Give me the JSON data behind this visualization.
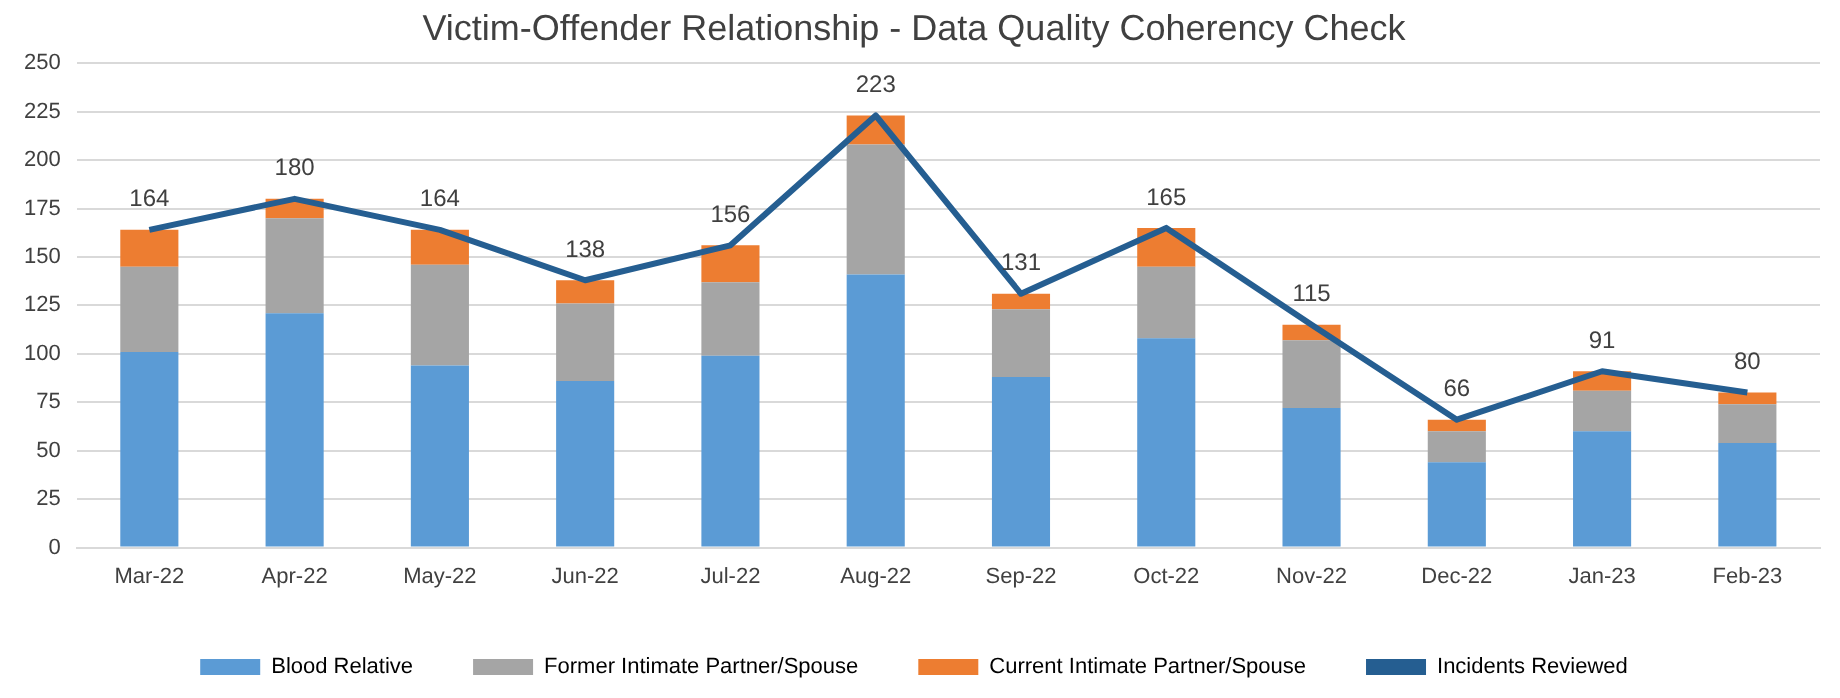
{
  "chart_data": {
    "type": "bar",
    "title": "Victim-Offender Relationship - Data Quality Coherency Check",
    "categories": [
      "Mar-22",
      "Apr-22",
      "May-22",
      "Jun-22",
      "Jul-22",
      "Aug-22",
      "Sep-22",
      "Oct-22",
      "Nov-22",
      "Dec-22",
      "Jan-23",
      "Feb-23"
    ],
    "stacked": true,
    "series": [
      {
        "name": "Blood Relative",
        "color": "#5b9bd5",
        "values": [
          101,
          121,
          94,
          86,
          99,
          141,
          88,
          108,
          72,
          44,
          60,
          54
        ]
      },
      {
        "name": "Former Intimate Partner/Spouse",
        "color": "#a5a5a5",
        "values": [
          44,
          49,
          52,
          40,
          38,
          67,
          35,
          37,
          35,
          16,
          21,
          20
        ]
      },
      {
        "name": "Current Intimate Partner/Spouse",
        "color": "#ed7d31",
        "values": [
          19,
          10,
          18,
          12,
          19,
          15,
          8,
          20,
          8,
          6,
          10,
          6
        ]
      },
      {
        "name": "Incidents Reviewed",
        "type": "line",
        "color": "#255e91",
        "values": [
          164,
          180,
          164,
          138,
          156,
          223,
          131,
          165,
          115,
          66,
          91,
          80
        ],
        "value_labels": [
          "164",
          "180",
          "164",
          "138",
          "156",
          "223",
          "131",
          "165",
          "115",
          "66",
          "91",
          "80"
        ]
      }
    ],
    "ylim": [
      0,
      250
    ],
    "yticks": [
      0,
      25,
      50,
      75,
      100,
      125,
      150,
      175,
      200,
      225,
      250
    ],
    "grid": "y",
    "legend": "bottom",
    "marker": "none",
    "line_style": "solid"
  }
}
